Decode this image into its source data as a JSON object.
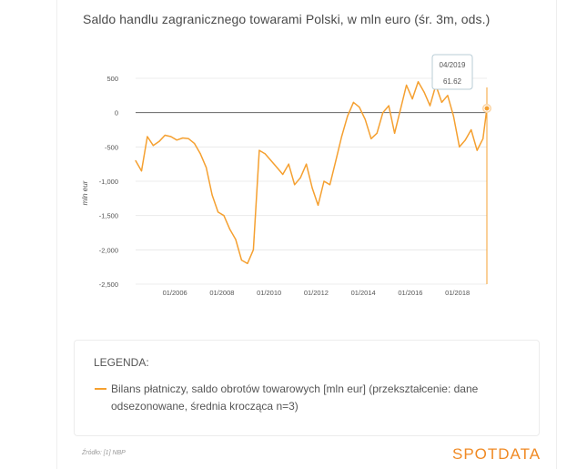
{
  "title": "Saldo handlu zagranicznego towarami Polski, w mln euro (śr. 3m, ods.)",
  "legend": {
    "heading": "LEGENDA:",
    "item": "Bilans płatniczy, saldo obrotów towarowych [mln eur] (przekształcenie: dane odsezonowane, średnia krocząca n=3)"
  },
  "source": "Źródło: [1] NBP",
  "brand": "SPOTDATA",
  "colors": {
    "line": "#f5a030",
    "zero_line": "#666666",
    "grid": "#e6e6e6"
  },
  "tooltip": {
    "date": "04/2019",
    "value": "61.62"
  },
  "chart_data": {
    "type": "line",
    "ylabel": "mln eur",
    "ylim": [
      -2500,
      500
    ],
    "yticks": [
      500,
      0,
      -500,
      -1000,
      -1500,
      -2000,
      -2500
    ],
    "ytick_labels": [
      "500",
      "0",
      "-500",
      "-1,000",
      "-1,500",
      "-2,000",
      "-2,500"
    ],
    "xlim": [
      "2004-05",
      "2019-04"
    ],
    "xticks": [
      "2006-01",
      "2008-01",
      "2010-01",
      "2012-01",
      "2014-01",
      "2016-01",
      "2018-01"
    ],
    "xtick_labels": [
      "01/2006",
      "01/2008",
      "01/2010",
      "01/2012",
      "01/2014",
      "01/2016",
      "01/2018"
    ],
    "series": [
      {
        "x": [
          "2004-05",
          "2004-08",
          "2004-11",
          "2005-02",
          "2005-05",
          "2005-08",
          "2005-11",
          "2006-02",
          "2006-05",
          "2006-08",
          "2006-11",
          "2007-02",
          "2007-05",
          "2007-08",
          "2007-11",
          "2008-02",
          "2008-05",
          "2008-08",
          "2008-11",
          "2009-02",
          "2009-05",
          "2009-08",
          "2009-11",
          "2010-02",
          "2010-05",
          "2010-08",
          "2010-11",
          "2011-02",
          "2011-05",
          "2011-08",
          "2011-11",
          "2012-02",
          "2012-05",
          "2012-08",
          "2012-11",
          "2013-02",
          "2013-05",
          "2013-08",
          "2013-11",
          "2014-02",
          "2014-05",
          "2014-08",
          "2014-11",
          "2015-02",
          "2015-05",
          "2015-08",
          "2015-11",
          "2016-02",
          "2016-05",
          "2016-08",
          "2016-11",
          "2017-02",
          "2017-05",
          "2017-08",
          "2017-11",
          "2018-02",
          "2018-05",
          "2018-08",
          "2018-11",
          "2019-02",
          "2019-04"
        ],
        "values": [
          -700,
          -850,
          -350,
          -480,
          -420,
          -330,
          -350,
          -400,
          -370,
          -380,
          -450,
          -600,
          -800,
          -1200,
          -1450,
          -1500,
          -1700,
          -1850,
          -2150,
          -2200,
          -2000,
          -550,
          -600,
          -700,
          -800,
          -900,
          -750,
          -1050,
          -950,
          -750,
          -1100,
          -1350,
          -1000,
          -1050,
          -700,
          -350,
          -50,
          150,
          80,
          -100,
          -380,
          -300,
          0,
          100,
          -300,
          50,
          400,
          200,
          450,
          300,
          100,
          400,
          150,
          250,
          -50,
          -500,
          -400,
          -250,
          -550,
          -380,
          61.62
        ]
      }
    ]
  }
}
